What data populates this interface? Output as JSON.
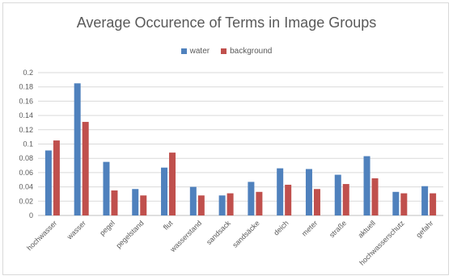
{
  "chart_data": {
    "type": "bar",
    "title": "Average Occurence  of Terms in Image Groups",
    "categories": [
      "hochwasser",
      "wasser",
      "pegel",
      "pegelstand",
      "flut",
      "wasserstand",
      "sandsack",
      "sandsäcke",
      "deich",
      "meter",
      "straße",
      "aktuell",
      "hochwasserschutz",
      "gefahr"
    ],
    "series": [
      {
        "name": "water",
        "color": "#4f81bd",
        "values": [
          0.091,
          0.185,
          0.075,
          0.037,
          0.067,
          0.04,
          0.028,
          0.047,
          0.066,
          0.065,
          0.057,
          0.083,
          0.033,
          0.041
        ]
      },
      {
        "name": "background",
        "color": "#c0504d",
        "values": [
          0.105,
          0.131,
          0.035,
          0.028,
          0.088,
          0.028,
          0.031,
          0.033,
          0.043,
          0.037,
          0.044,
          0.052,
          0.031,
          0.031
        ]
      }
    ],
    "ylim": [
      0,
      0.2
    ],
    "yticks": [
      "0",
      "0.02",
      "0.04",
      "0.06",
      "0.08",
      "0.1",
      "0.12",
      "0.14",
      "0.16",
      "0.18",
      "0.2"
    ],
    "grid": true,
    "legend": "top-center",
    "xlabel": "",
    "ylabel": ""
  }
}
